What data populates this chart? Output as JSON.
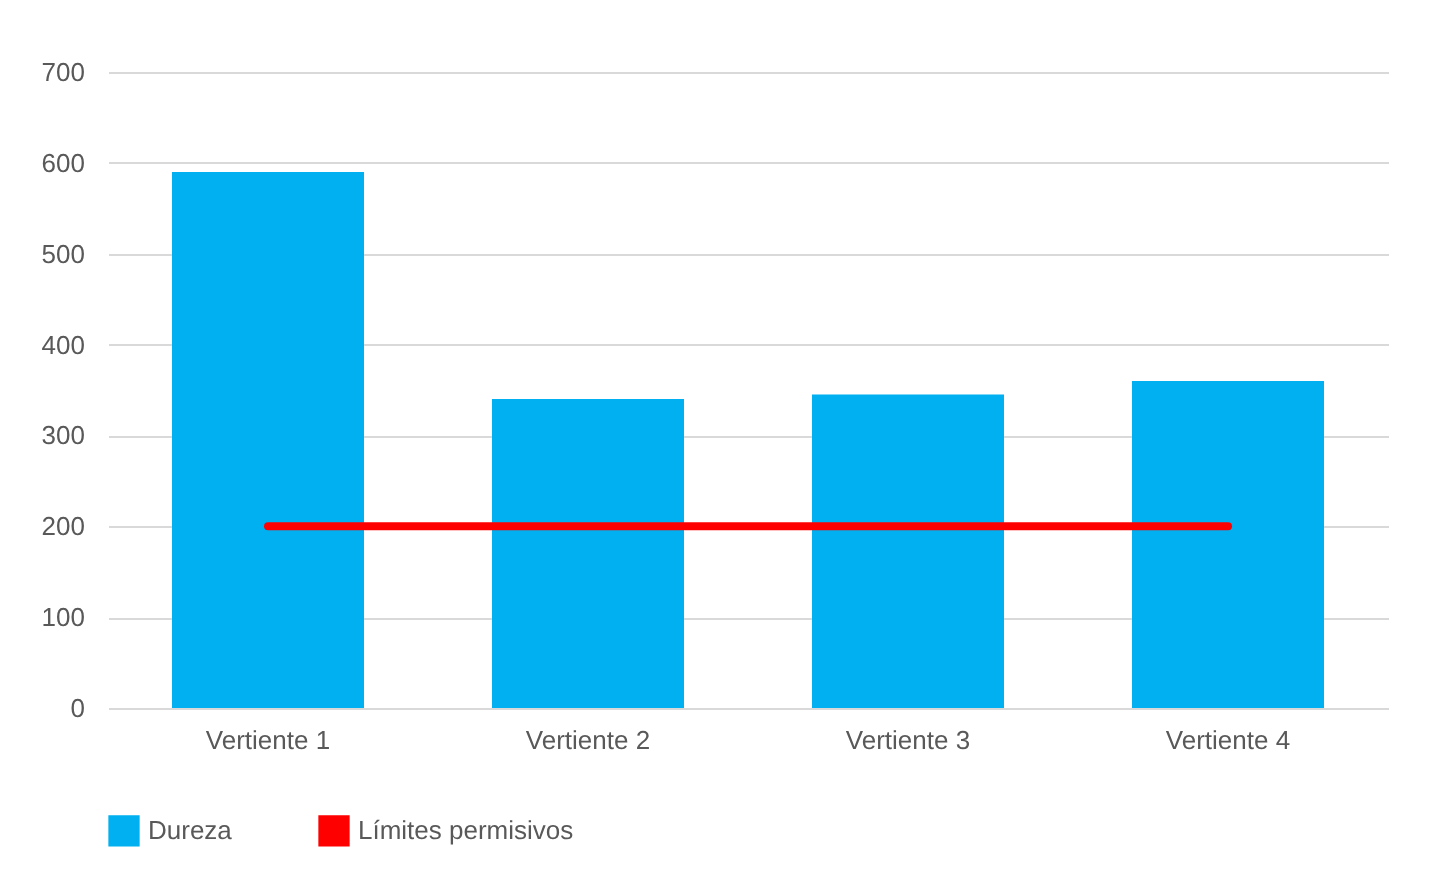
{
  "chart_data": {
    "type": "bar",
    "categories": [
      "Vertiente 1",
      "Vertiente 2",
      "Vertiente 3",
      "Vertiente 4"
    ],
    "series": [
      {
        "name": "Dureza",
        "color": "#00b0f0",
        "values": [
          590,
          340,
          345,
          360
        ]
      },
      {
        "name": "Límites permisivos",
        "type": "line",
        "color": "#ff0000",
        "values": [
          200,
          200,
          200,
          200
        ]
      }
    ],
    "ylim": [
      0,
      700
    ],
    "yticks": [
      0,
      100,
      200,
      300,
      400,
      500,
      600,
      700
    ],
    "grid": "y",
    "legend": "bottom"
  }
}
